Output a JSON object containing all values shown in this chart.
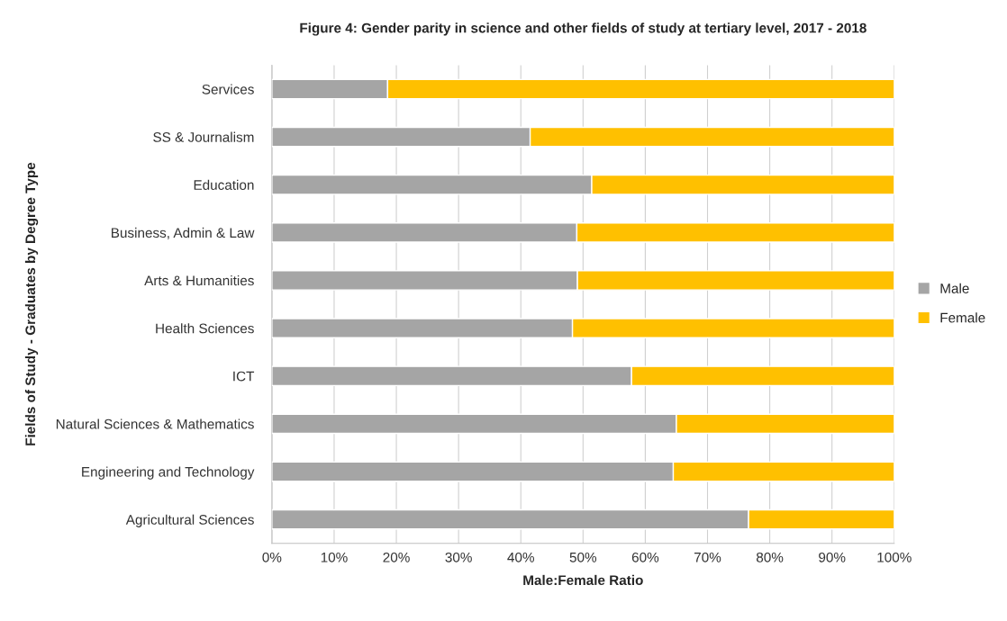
{
  "chart_data": {
    "type": "bar",
    "orientation": "horizontal",
    "stacked": true,
    "title": "Figure 4: Gender parity in science and other fields of study at tertiary level, 2017 - 2018",
    "xlabel": "Male:Female Ratio",
    "ylabel": "Fields of Study - Graduates by Degree Type",
    "categories": [
      "Services",
      "SS & Journalism",
      "Education",
      "Business, Admin & Law",
      "Arts & Humanities",
      "Health Sciences",
      "ICT",
      "Natural Sciences & Mathematics",
      "Engineering and Technology",
      "Agricultural Sciences"
    ],
    "series": [
      {
        "name": "Male",
        "color": "#a5a5a5",
        "values": [
          18.6,
          41.5,
          51.4,
          49.0,
          49.1,
          48.3,
          57.8,
          65.0,
          64.5,
          76.6
        ]
      },
      {
        "name": "Female",
        "color": "#ffc000",
        "values": [
          81.4,
          58.5,
          48.6,
          51.0,
          50.9,
          51.7,
          42.2,
          35.0,
          35.5,
          23.4
        ]
      }
    ],
    "xlim": [
      0,
      100
    ],
    "xticks": [
      {
        "value": 0,
        "label": "0%"
      },
      {
        "value": 10,
        "label": "10%"
      },
      {
        "value": 20,
        "label": "20%"
      },
      {
        "value": 30,
        "label": "30%"
      },
      {
        "value": 40,
        "label": "40%"
      },
      {
        "value": 50,
        "label": "50%"
      },
      {
        "value": 60,
        "label": "60%"
      },
      {
        "value": 70,
        "label": "70%"
      },
      {
        "value": 80,
        "label": "80%"
      },
      {
        "value": 90,
        "label": "90%"
      },
      {
        "value": 100,
        "label": "100%"
      }
    ],
    "grid": "x",
    "legend": "right"
  }
}
